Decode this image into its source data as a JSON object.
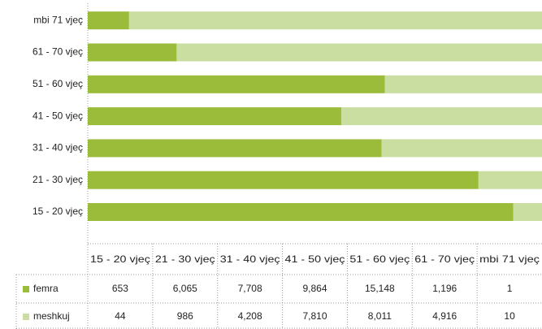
{
  "chart_data": {
    "type": "bar",
    "orientation": "horizontal",
    "stacking": "percent",
    "categories": [
      "15 - 20 vjeç",
      "21 - 30 vjeç",
      "31 - 40 vjeç",
      "41 - 50 vjeç",
      "51 - 60 vjeç",
      "61 - 70 vjeç",
      "mbi 71 vjeç"
    ],
    "series": [
      {
        "name": "femra",
        "color": "#9bbb3b",
        "values": [
          653,
          6065,
          7708,
          9864,
          15148,
          1196,
          1
        ],
        "value_labels": [
          "653",
          "6,065",
          "7,708",
          "9,864",
          "15,148",
          "1,196",
          "1"
        ]
      },
      {
        "name": "meshkuj",
        "color": "#c9dea0",
        "values": [
          44,
          986,
          4208,
          7810,
          8011,
          4916,
          10
        ],
        "value_labels": [
          "44",
          "986",
          "4,208",
          "7,810",
          "8,011",
          "4,916",
          "10"
        ]
      }
    ],
    "data_table": true
  }
}
